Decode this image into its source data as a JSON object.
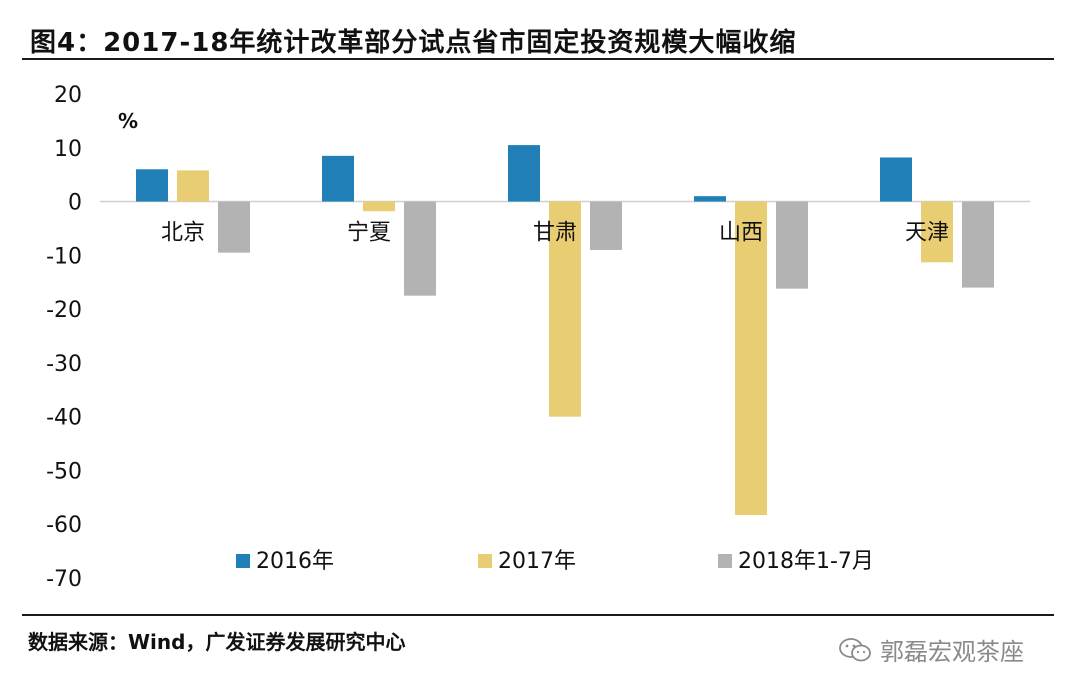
{
  "title": "图4：2017-18年统计改革部分试点省市固定投资规模大幅收缩",
  "source": "数据来源：Wind，广发证券发展研究中心",
  "watermark": "郭磊宏观茶座",
  "chart_data": {
    "type": "bar",
    "title": "图4：2017-18年统计改革部分试点省市固定投资规模大幅收缩",
    "ylabel": "%",
    "xlabel": "",
    "ylim": [
      -70,
      20
    ],
    "yticks": [
      20,
      10,
      0,
      -10,
      -20,
      -30,
      -40,
      -50,
      -60,
      -70
    ],
    "categories": [
      "北京",
      "宁夏",
      "甘肃",
      "山西",
      "天津"
    ],
    "series": [
      {
        "name": "2016年",
        "color": "#1f7fb6",
        "values": [
          6.0,
          8.5,
          10.5,
          1.0,
          8.2
        ]
      },
      {
        "name": "2017年",
        "color": "#e9cd72",
        "values": [
          5.8,
          -1.8,
          -40.0,
          -58.3,
          -11.3
        ]
      },
      {
        "name": "2018年1-7月",
        "color": "#b3b3b3",
        "values": [
          -9.5,
          -17.5,
          -9.0,
          -16.2,
          -16.0
        ]
      }
    ],
    "legend_position": "bottom"
  }
}
